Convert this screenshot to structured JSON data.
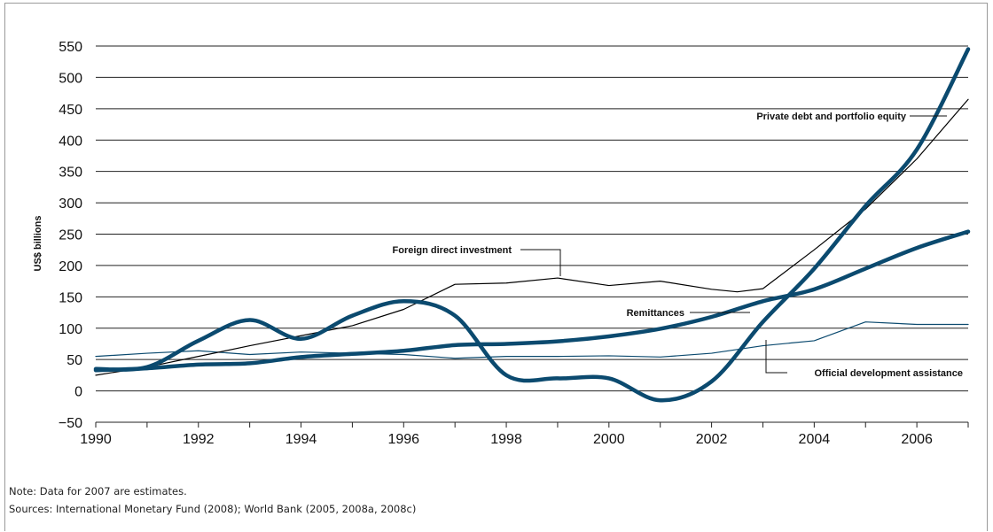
{
  "chart_data": {
    "type": "line",
    "title": "",
    "xlabel": "",
    "ylabel": "US$ billions",
    "xlim": [
      1990,
      2007
    ],
    "ylim": [
      -50,
      550
    ],
    "y_ticks": [
      -50,
      0,
      50,
      100,
      150,
      200,
      250,
      300,
      350,
      400,
      450,
      500,
      550
    ],
    "y_tick_labels": [
      "−50",
      "0",
      "50",
      "100",
      "150",
      "200",
      "250",
      "300",
      "350",
      "400",
      "450",
      "500",
      "550"
    ],
    "x_ticks": [
      1990,
      1992,
      1994,
      1996,
      1998,
      2000,
      2002,
      2004,
      2006
    ],
    "x_tick_labels": [
      "1990",
      "1992",
      "1994",
      "1996",
      "1998",
      "2000",
      "2002",
      "2004",
      "2006"
    ],
    "grid": "horizontal",
    "series": [
      {
        "name": "Private debt and portfolio equity",
        "style": "thick",
        "color": "#0b4a6f",
        "x": [
          1990,
          1991,
          1992,
          1993,
          1994,
          1995,
          1996,
          1997,
          1998,
          1999,
          2000,
          2001,
          2002,
          2003,
          2004,
          2005,
          2006,
          2007
        ],
        "y": [
          35,
          38,
          80,
          113,
          83,
          120,
          143,
          120,
          25,
          20,
          20,
          -15,
          15,
          110,
          195,
          295,
          385,
          545
        ]
      },
      {
        "name": "Foreign direct investment",
        "style": "thin",
        "color": "#000000",
        "x": [
          1990,
          1991,
          1992,
          1993,
          1994,
          1995,
          1996,
          1997,
          1998,
          1999,
          2000,
          2001,
          2002,
          2002.5,
          2003,
          2004,
          2005,
          2006,
          2007
        ],
        "y": [
          25,
          38,
          55,
          72,
          88,
          104,
          130,
          170,
          172,
          180,
          168,
          175,
          162,
          158,
          163,
          225,
          290,
          370,
          465
        ]
      },
      {
        "name": "Remittances",
        "style": "thick",
        "color": "#0b4a6f",
        "x": [
          1990,
          1991,
          1992,
          1993,
          1994,
          1995,
          1996,
          1997,
          1998,
          1999,
          2000,
          2001,
          2002,
          2003,
          2004,
          2005,
          2006,
          2007
        ],
        "y": [
          33,
          36,
          42,
          44,
          54,
          59,
          64,
          73,
          75,
          79,
          87,
          99,
          118,
          143,
          162,
          195,
          228,
          254
        ]
      },
      {
        "name": "Official development assistance",
        "style": "thin",
        "color": "#0b4a6f",
        "x": [
          1990,
          1991,
          1992,
          1993,
          1994,
          1995,
          1996,
          1997,
          1998,
          1999,
          2000,
          2001,
          2002,
          2003,
          2004,
          2005,
          2006,
          2007
        ],
        "y": [
          55,
          60,
          64,
          58,
          62,
          60,
          58,
          52,
          55,
          55,
          56,
          54,
          60,
          72,
          80,
          110,
          106,
          106
        ]
      }
    ]
  },
  "notes": {
    "note": "Note: Data for 2007 are estimates.",
    "sources": "Sources: International Monetary Fund (2008); World Bank (2005, 2008a, 2008c)"
  }
}
